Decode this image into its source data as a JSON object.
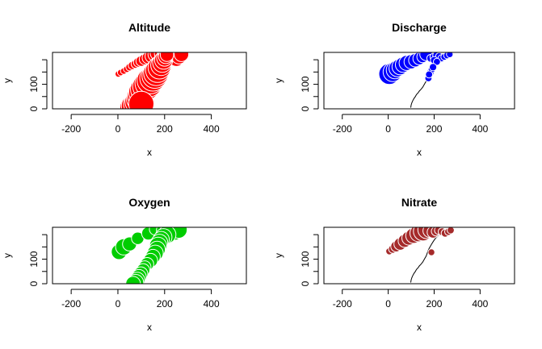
{
  "chart_data": [
    {
      "type": "scatter",
      "title": "Altitude",
      "xlabel": "x",
      "ylabel": "y",
      "xlim": [
        -280,
        550
      ],
      "ylim": [
        0,
        230
      ],
      "xticks": [
        -200,
        0,
        200,
        400
      ],
      "yticks": [
        0,
        100
      ],
      "yticks_unlabeled": [
        50,
        150,
        200
      ],
      "color": "#ff0000",
      "stroke": "#ffffff",
      "has_line": false,
      "points": [
        [
          2,
          142,
          0.1
        ],
        [
          12,
          148,
          0.1
        ],
        [
          25,
          154,
          0.1
        ],
        [
          38,
          162,
          0.12
        ],
        [
          50,
          170,
          0.15
        ],
        [
          62,
          177,
          0.18
        ],
        [
          75,
          183,
          0.2
        ],
        [
          88,
          190,
          0.25
        ],
        [
          100,
          195,
          0.28
        ],
        [
          115,
          202,
          0.3
        ],
        [
          130,
          208,
          0.35
        ],
        [
          145,
          215,
          0.4
        ],
        [
          160,
          222,
          0.45
        ],
        [
          172,
          228,
          0.5
        ],
        [
          190,
          226,
          0.5
        ],
        [
          205,
          222,
          0.55
        ],
        [
          215,
          210,
          0.6
        ],
        [
          225,
          218,
          0.55
        ],
        [
          238,
          212,
          0.55
        ],
        [
          250,
          205,
          0.5
        ],
        [
          262,
          215,
          0.5
        ],
        [
          272,
          222,
          0.45
        ],
        [
          60,
          5,
          0.85
        ],
        [
          68,
          12,
          0.88
        ],
        [
          78,
          20,
          0.9
        ],
        [
          85,
          30,
          0.92
        ],
        [
          93,
          42,
          0.95
        ],
        [
          98,
          55,
          0.96
        ],
        [
          104,
          68,
          0.97
        ],
        [
          112,
          80,
          0.98
        ],
        [
          122,
          92,
          0.99
        ],
        [
          132,
          104,
          1.0
        ],
        [
          140,
          116,
          0.98
        ],
        [
          150,
          126,
          0.95
        ],
        [
          158,
          136,
          0.93
        ],
        [
          164,
          146,
          0.9
        ],
        [
          170,
          156,
          0.85
        ],
        [
          178,
          168,
          0.8
        ],
        [
          185,
          178,
          0.72
        ],
        [
          190,
          188,
          0.65
        ],
        [
          196,
          198,
          0.6
        ],
        [
          200,
          206,
          0.5
        ],
        [
          205,
          214,
          0.45
        ],
        [
          210,
          220,
          0.4
        ],
        [
          100,
          20,
          0.9
        ]
      ]
    },
    {
      "type": "scatter",
      "title": "Discharge",
      "xlabel": "x",
      "ylabel": "y",
      "xlim": [
        -280,
        550
      ],
      "ylim": [
        0,
        230
      ],
      "xticks": [
        -200,
        0,
        200,
        400
      ],
      "yticks": [
        0,
        100
      ],
      "yticks_unlabeled": [
        50,
        150,
        200
      ],
      "color": "#0000ff",
      "stroke": "#ffffff",
      "has_line": true,
      "line": [
        [
          98,
          5
        ],
        [
          100,
          15
        ],
        [
          103,
          25
        ],
        [
          108,
          35
        ],
        [
          112,
          42
        ],
        [
          118,
          50
        ],
        [
          123,
          58
        ],
        [
          130,
          65
        ],
        [
          135,
          72
        ],
        [
          143,
          80
        ],
        [
          150,
          88
        ],
        [
          155,
          96
        ],
        [
          160,
          104
        ],
        [
          165,
          112
        ],
        [
          168,
          120
        ],
        [
          172,
          130
        ],
        [
          176,
          140
        ],
        [
          182,
          150
        ],
        [
          188,
          160
        ],
        [
          196,
          172
        ],
        [
          205,
          184
        ],
        [
          215,
          194
        ],
        [
          228,
          204
        ],
        [
          240,
          212
        ],
        [
          255,
          218
        ],
        [
          270,
          222
        ]
      ],
      "points": [
        [
          5,
          142,
          1.0
        ],
        [
          20,
          150,
          0.9
        ],
        [
          30,
          158,
          0.8
        ],
        [
          40,
          165,
          0.75
        ],
        [
          52,
          172,
          0.72
        ],
        [
          65,
          180,
          0.68
        ],
        [
          80,
          187,
          0.65
        ],
        [
          100,
          192,
          0.6
        ],
        [
          118,
          198,
          0.55
        ],
        [
          135,
          205,
          0.5
        ],
        [
          150,
          212,
          0.45
        ],
        [
          165,
          222,
          0.5
        ],
        [
          185,
          206,
          0.22
        ],
        [
          198,
          212,
          0.2
        ],
        [
          210,
          218,
          0.2
        ],
        [
          222,
          214,
          0.18
        ],
        [
          232,
          206,
          0.18
        ],
        [
          244,
          212,
          0.16
        ],
        [
          256,
          218,
          0.16
        ],
        [
          268,
          222,
          0.15
        ],
        [
          200,
          198,
          0.2
        ],
        [
          212,
          192,
          0.18
        ],
        [
          185,
          150,
          0.2
        ],
        [
          190,
          160,
          0.18
        ],
        [
          195,
          170,
          0.2
        ],
        [
          175,
          125,
          0.18
        ],
        [
          178,
          140,
          0.18
        ]
      ]
    },
    {
      "type": "scatter",
      "title": "Oxygen",
      "xlabel": "x",
      "ylabel": "y",
      "xlim": [
        -280,
        550
      ],
      "ylim": [
        0,
        230
      ],
      "xticks": [
        -200,
        0,
        200,
        400
      ],
      "yticks": [
        0,
        100
      ],
      "yticks_unlabeled": [
        50,
        150,
        200
      ],
      "color": "#00cd00",
      "stroke": "#ffffff",
      "has_line": true,
      "line": [
        [
          98,
          5
        ],
        [
          100,
          15
        ],
        [
          103,
          25
        ],
        [
          108,
          35
        ],
        [
          112,
          42
        ],
        [
          118,
          50
        ],
        [
          123,
          58
        ],
        [
          130,
          65
        ],
        [
          135,
          72
        ],
        [
          143,
          80
        ],
        [
          150,
          88
        ],
        [
          155,
          96
        ],
        [
          160,
          104
        ],
        [
          165,
          112
        ],
        [
          168,
          120
        ],
        [
          172,
          130
        ],
        [
          176,
          140
        ],
        [
          182,
          150
        ],
        [
          188,
          160
        ],
        [
          196,
          172
        ],
        [
          205,
          184
        ],
        [
          215,
          194
        ],
        [
          228,
          204
        ],
        [
          240,
          212
        ],
        [
          255,
          218
        ],
        [
          270,
          222
        ]
      ],
      "points": [
        [
          5,
          130,
          0.75
        ],
        [
          25,
          150,
          0.8
        ],
        [
          50,
          162,
          0.65
        ],
        [
          85,
          185,
          0.55
        ],
        [
          130,
          205,
          0.6
        ],
        [
          160,
          222,
          0.5
        ],
        [
          200,
          218,
          0.8
        ],
        [
          220,
          210,
          0.9
        ],
        [
          240,
          215,
          0.95
        ],
        [
          260,
          220,
          0.85
        ],
        [
          210,
          200,
          0.9
        ],
        [
          195,
          190,
          0.85
        ],
        [
          185,
          180,
          0.8
        ],
        [
          178,
          168,
          0.82
        ],
        [
          172,
          155,
          0.85
        ],
        [
          168,
          140,
          0.8
        ],
        [
          160,
          125,
          0.78
        ],
        [
          150,
          110,
          0.7
        ],
        [
          140,
          95,
          0.65
        ],
        [
          125,
          80,
          0.6
        ],
        [
          115,
          68,
          0.55
        ],
        [
          108,
          55,
          0.6
        ],
        [
          98,
          40,
          0.65
        ],
        [
          90,
          28,
          0.7
        ],
        [
          82,
          15,
          0.75
        ],
        [
          75,
          5,
          0.8
        ],
        [
          65,
          0,
          0.7
        ]
      ]
    },
    {
      "type": "scatter",
      "title": "Nitrate",
      "xlabel": "x",
      "ylabel": "y",
      "xlim": [
        -280,
        550
      ],
      "ylim": [
        0,
        230
      ],
      "xticks": [
        -200,
        0,
        200,
        400
      ],
      "yticks": [
        0,
        100
      ],
      "yticks_unlabeled": [
        50,
        150,
        200
      ],
      "color": "#a52a2a",
      "stroke": "#ffffff",
      "has_line": true,
      "line": [
        [
          98,
          5
        ],
        [
          100,
          15
        ],
        [
          103,
          25
        ],
        [
          108,
          35
        ],
        [
          112,
          42
        ],
        [
          118,
          50
        ],
        [
          123,
          58
        ],
        [
          130,
          65
        ],
        [
          135,
          72
        ],
        [
          143,
          80
        ],
        [
          150,
          88
        ],
        [
          155,
          96
        ],
        [
          160,
          104
        ],
        [
          165,
          112
        ],
        [
          168,
          120
        ],
        [
          172,
          130
        ],
        [
          176,
          140
        ],
        [
          182,
          150
        ],
        [
          188,
          160
        ],
        [
          196,
          172
        ],
        [
          205,
          184
        ],
        [
          215,
          194
        ],
        [
          228,
          204
        ],
        [
          240,
          212
        ],
        [
          255,
          218
        ],
        [
          270,
          222
        ]
      ],
      "points": [
        [
          5,
          132,
          0.2
        ],
        [
          20,
          142,
          0.3
        ],
        [
          35,
          152,
          0.45
        ],
        [
          52,
          162,
          0.55
        ],
        [
          72,
          175,
          0.6
        ],
        [
          90,
          186,
          0.65
        ],
        [
          110,
          196,
          0.75
        ],
        [
          132,
          206,
          0.85
        ],
        [
          152,
          214,
          1.0
        ],
        [
          168,
          220,
          0.9
        ],
        [
          180,
          216,
          0.6
        ],
        [
          195,
          210,
          0.5
        ],
        [
          208,
          214,
          0.35
        ],
        [
          220,
          218,
          0.3
        ],
        [
          235,
          212,
          0.25
        ],
        [
          248,
          206,
          0.25
        ],
        [
          262,
          212,
          0.22
        ],
        [
          272,
          218,
          0.2
        ],
        [
          188,
          128,
          0.18
        ]
      ]
    }
  ]
}
